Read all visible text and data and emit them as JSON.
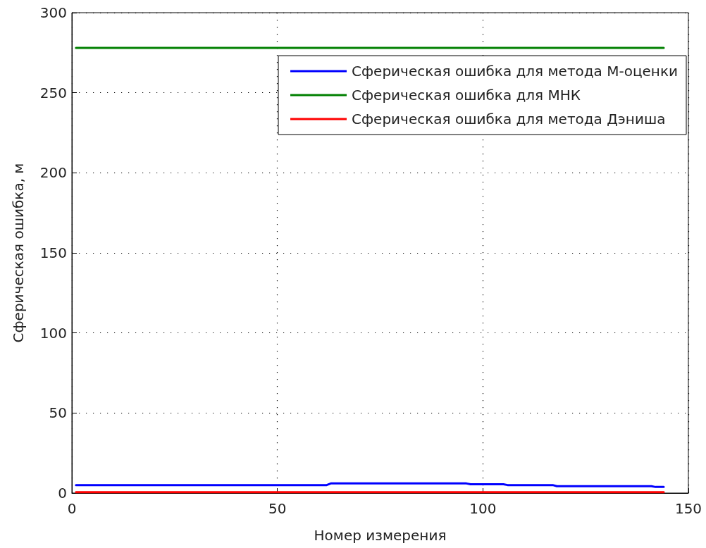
{
  "chart_data": {
    "type": "line",
    "xlabel": "Номер измерения",
    "ylabel": "Сферическая ошибка, м",
    "xlim": [
      0,
      150
    ],
    "xticks": [
      0,
      50,
      100,
      150
    ],
    "ylim": [
      0,
      300
    ],
    "yticks": [
      0,
      50,
      100,
      150,
      200,
      250,
      300
    ],
    "grid": true,
    "legend": "top right",
    "marker": "none",
    "line_style": "solid",
    "series": [
      {
        "name": "Сферическая ошибка для метода М-оценки",
        "color": "#0000ff",
        "x": [
          1,
          62,
          63,
          96,
          97,
          105,
          106,
          117,
          118,
          141,
          142,
          144
        ],
        "values": [
          5,
          5,
          6,
          6,
          5.5,
          5.5,
          5,
          5,
          4.3,
          4.3,
          3.8,
          3.8
        ]
      },
      {
        "name": "Сферическая ошибка для МНК",
        "color": "#008000",
        "x": [
          1,
          144
        ],
        "values": [
          278,
          278
        ]
      },
      {
        "name": "Сферическая ошибка для метода Дэниша",
        "color": "#ff0000",
        "x": [
          1,
          144
        ],
        "values": [
          0.5,
          0.5
        ]
      }
    ]
  }
}
